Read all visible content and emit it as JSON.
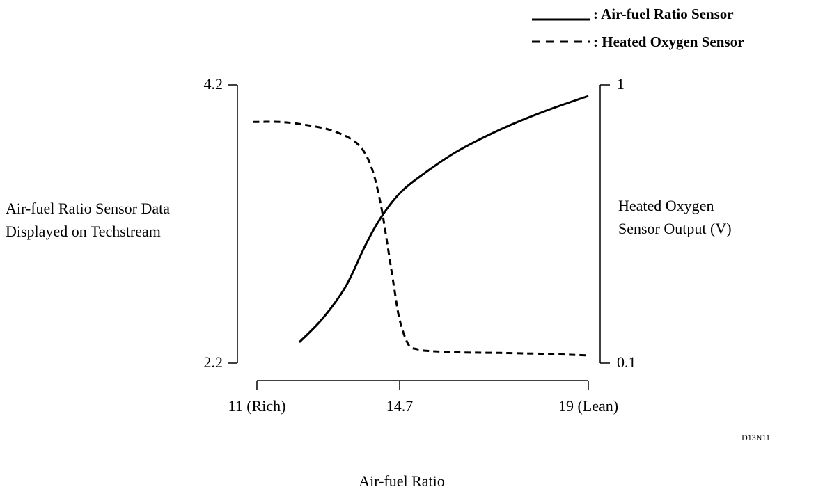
{
  "chart_data": {
    "type": "line",
    "title": "",
    "xlabel": "Air-fuel Ratio",
    "ylabel_left": [
      "Air-fuel Ratio Sensor Data",
      "Displayed on Techstream"
    ],
    "ylabel_right": [
      "Heated Oxygen",
      "Sensor Output (V)"
    ],
    "x_ticks": [
      {
        "value": 11,
        "label": "11 (Rich)"
      },
      {
        "value": 14.7,
        "label": "14.7"
      },
      {
        "value": 19,
        "label": "19 (Lean)"
      }
    ],
    "xlim": [
      11,
      19
    ],
    "y_left_ticks": [
      {
        "value": 2.2,
        "label": "2.2"
      },
      {
        "value": 4.2,
        "label": "4.2"
      }
    ],
    "ylim_left": [
      2.2,
      4.2
    ],
    "y_right_ticks": [
      {
        "value": 0.1,
        "label": "0.1"
      },
      {
        "value": 1,
        "label": "1"
      }
    ],
    "ylim_right": [
      0.1,
      1
    ],
    "grid": false,
    "legend_position": "top-right",
    "series": [
      {
        "name": "Air-fuel Ratio Sensor",
        "axis": "left",
        "style": "solid",
        "x": [
          12.1,
          12.7,
          13.3,
          13.8,
          14.2,
          14.7,
          15.2,
          16.0,
          17.0,
          18.0,
          19.0
        ],
        "y": [
          2.35,
          2.52,
          2.75,
          3.04,
          3.24,
          3.42,
          3.55,
          3.72,
          3.88,
          4.01,
          4.12
        ]
      },
      {
        "name": "Heated Oxygen Sensor",
        "axis": "right",
        "style": "dashed",
        "x": [
          10.9,
          11.6,
          12.3,
          13.0,
          13.6,
          13.95,
          14.2,
          14.4,
          14.55,
          14.7,
          14.9,
          15.1,
          15.3,
          16.0,
          17.0,
          18.0,
          19.0
        ],
        "y": [
          0.88,
          0.88,
          0.87,
          0.85,
          0.81,
          0.74,
          0.62,
          0.47,
          0.35,
          0.24,
          0.16,
          0.145,
          0.14,
          0.135,
          0.133,
          0.13,
          0.125
        ]
      }
    ]
  },
  "legend": {
    "items": [
      {
        "label": ": Air-fuel Ratio Sensor"
      },
      {
        "label": ": Heated Oxygen Sensor"
      }
    ]
  },
  "figure_id": "D13N11",
  "colors": {
    "ink": "#000000",
    "background": "#ffffff"
  }
}
